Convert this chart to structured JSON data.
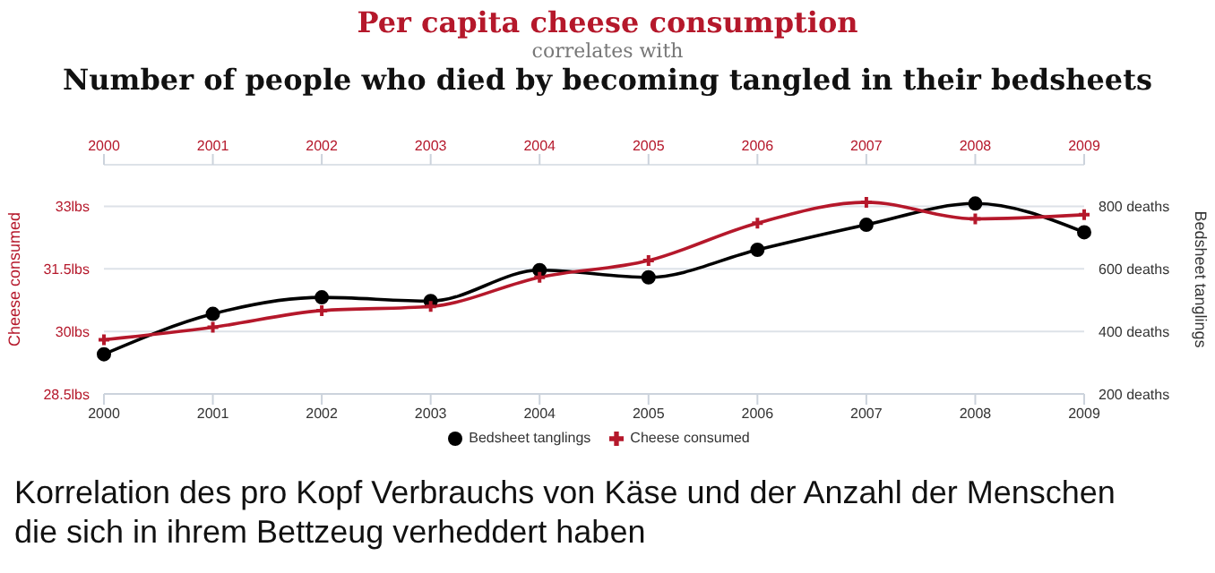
{
  "chart_data": {
    "type": "line",
    "title": "Per capita cheese consumption",
    "subtitle": "correlates with",
    "annotations": [
      "Number of people who died by becoming tangled in their bedsheets",
      "Korrelation des pro Kopf Verbrauchs von Käse und der Anzahl der Menschen die sich in ihrem Bettzeug verheddert haben"
    ],
    "categories": [
      "2000",
      "2001",
      "2002",
      "2003",
      "2004",
      "2005",
      "2006",
      "2007",
      "2008",
      "2009"
    ],
    "series": [
      {
        "name": "Bedsheet tanglings",
        "color": "#000000",
        "axis": "y2",
        "marker": "circle",
        "values": [
          327,
          456,
          509,
          497,
          596,
          573,
          661,
          741,
          809,
          717
        ]
      },
      {
        "name": "Cheese consumed",
        "color": "#b5182b",
        "marker": "cross",
        "values": [
          29.8,
          30.1,
          30.5,
          30.6,
          31.3,
          31.7,
          32.6,
          33.1,
          32.7,
          32.8
        ]
      }
    ],
    "ylabel": "Cheese consumed",
    "y2label": "Bedsheet tanglings",
    "ylim": [
      28.5,
      34
    ],
    "yticks": [
      {
        "value": 28.5,
        "label": "28.5lbs"
      },
      {
        "value": 30,
        "label": "30lbs"
      },
      {
        "value": 31.5,
        "label": "31.5lbs"
      },
      {
        "value": 33,
        "label": "33lbs"
      }
    ],
    "y2lim": [
      200,
      933
    ],
    "y2ticks": [
      {
        "value": 200,
        "label": "200 deaths"
      },
      {
        "value": 400,
        "label": "400 deaths"
      },
      {
        "value": 600,
        "label": "600 deaths"
      },
      {
        "value": 800,
        "label": "800 deaths"
      }
    ],
    "grid": "y",
    "legend": "bottom"
  }
}
